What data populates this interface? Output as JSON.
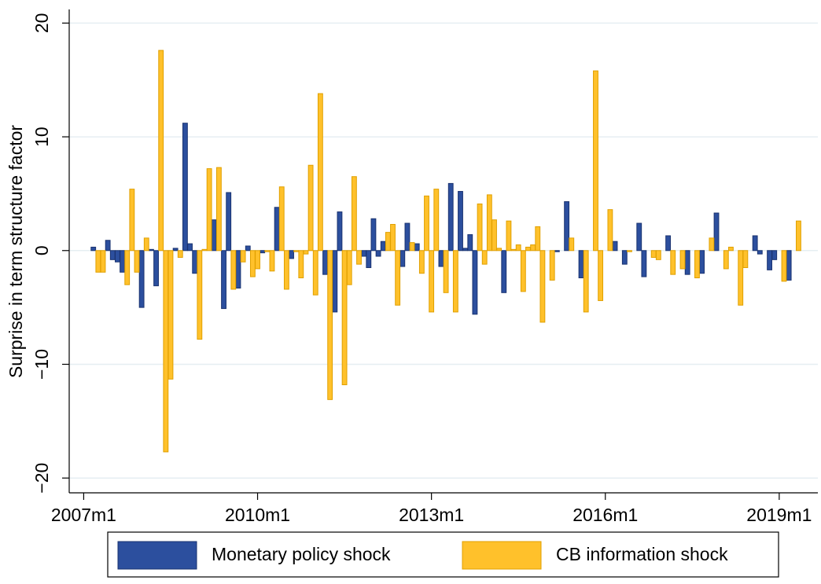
{
  "chart_data": {
    "type": "bar",
    "y_label": "Surprise in term structure factor",
    "x": [
      "2007m3",
      "2007m4",
      "2007m5",
      "2007m6",
      "2007m7",
      "2007m8",
      "2007m9",
      "2007m10",
      "2007m11",
      "2007m12",
      "2008m1",
      "2008m2",
      "2008m3",
      "2008m4",
      "2008m5",
      "2008m6",
      "2008m7",
      "2008m8",
      "2008m9",
      "2008m10",
      "2008m11",
      "2008m12",
      "2009m1",
      "2009m2",
      "2009m3",
      "2009m4",
      "2009m5",
      "2009m6",
      "2009m7",
      "2009m8",
      "2009m9",
      "2009m10",
      "2009m11",
      "2009m12",
      "2010m1",
      "2010m2",
      "2010m3",
      "2010m4",
      "2010m5",
      "2010m6",
      "2010m7",
      "2010m8",
      "2010m9",
      "2010m10",
      "2010m11",
      "2010m12",
      "2011m1",
      "2011m2",
      "2011m3",
      "2011m4",
      "2011m5",
      "2011m6",
      "2011m7",
      "2011m8",
      "2011m9",
      "2011m10",
      "2011m11",
      "2011m12",
      "2012m1",
      "2012m2",
      "2012m3",
      "2012m4",
      "2012m5",
      "2012m6",
      "2012m7",
      "2012m8",
      "2012m9",
      "2012m10",
      "2012m11",
      "2012m12",
      "2013m1",
      "2013m2",
      "2013m3",
      "2013m4",
      "2013m5",
      "2013m6",
      "2013m7",
      "2013m8",
      "2013m9",
      "2013m10",
      "2013m11",
      "2013m12",
      "2014m1",
      "2014m2",
      "2014m3",
      "2014m4",
      "2014m5",
      "2014m6",
      "2014m7",
      "2014m8",
      "2014m9",
      "2014m10",
      "2014m11",
      "2014m12",
      "2015m2",
      "2015m3",
      "2015m5",
      "2015m6",
      "2015m8",
      "2015m9",
      "2015m11",
      "2015m12",
      "2016m2",
      "2016m3",
      "2016m5",
      "2016m6",
      "2016m8",
      "2016m9",
      "2016m11",
      "2016m12",
      "2017m2",
      "2017m3",
      "2017m5",
      "2017m6",
      "2017m8",
      "2017m9",
      "2017m11",
      "2017m12",
      "2018m2",
      "2018m3",
      "2018m5",
      "2018m6",
      "2018m8",
      "2018m9",
      "2018m11",
      "2018m12",
      "2019m2",
      "2019m3",
      "2019m5"
    ],
    "series": [
      {
        "name": "Monetary policy shock",
        "color": "#2c4f9e",
        "edge": "#1a3370",
        "values": [
          0.3,
          null,
          null,
          0.9,
          -0.8,
          -1.0,
          -1.9,
          null,
          null,
          null,
          -5.0,
          null,
          0.1,
          -3.1,
          null,
          null,
          null,
          0.2,
          null,
          11.2,
          0.6,
          -2.0,
          null,
          null,
          null,
          2.7,
          null,
          -5.1,
          5.1,
          null,
          -3.3,
          null,
          0.4,
          null,
          null,
          -0.2,
          null,
          null,
          3.8,
          null,
          null,
          -0.7,
          null,
          null,
          null,
          null,
          null,
          null,
          -2.1,
          null,
          -5.4,
          3.4,
          null,
          null,
          null,
          null,
          -0.5,
          -1.5,
          2.8,
          -0.5,
          0.8,
          null,
          null,
          null,
          -1.4,
          2.4,
          null,
          0.6,
          null,
          null,
          null,
          null,
          -1.4,
          null,
          5.9,
          null,
          5.2,
          0.2,
          1.4,
          -5.6,
          null,
          null,
          null,
          null,
          null,
          -3.7,
          null,
          null,
          null,
          null,
          null,
          null,
          null,
          null,
          null,
          -0.1,
          4.3,
          null,
          -2.4,
          null,
          null,
          null,
          null,
          0.8,
          -1.2,
          null,
          2.4,
          -2.3,
          null,
          null,
          1.3,
          null,
          null,
          -2.1,
          null,
          -2.0,
          null,
          3.3,
          null,
          null,
          null,
          null,
          1.3,
          -0.3,
          -1.7,
          -0.8,
          null,
          -2.6,
          null
        ]
      },
      {
        "name": "CB information shock",
        "color": "#ffc12b",
        "edge": "#e0a000",
        "values": [
          null,
          -1.9,
          -1.9,
          null,
          null,
          null,
          null,
          -3.0,
          5.4,
          -1.9,
          null,
          1.1,
          null,
          null,
          17.6,
          -17.7,
          -11.3,
          null,
          -0.6,
          null,
          null,
          null,
          -7.8,
          0.1,
          7.2,
          null,
          7.3,
          null,
          null,
          -3.4,
          null,
          -1.0,
          null,
          -2.3,
          -1.6,
          null,
          -0.1,
          -1.8,
          null,
          5.6,
          -3.4,
          null,
          -0.1,
          -2.4,
          -0.3,
          7.5,
          -3.9,
          13.8,
          null,
          -13.1,
          null,
          null,
          -11.8,
          -3.0,
          6.5,
          -1.2,
          null,
          null,
          null,
          null,
          null,
          1.6,
          2.3,
          -4.8,
          null,
          null,
          0.7,
          null,
          -2.0,
          4.8,
          -5.4,
          5.4,
          null,
          -3.7,
          null,
          -5.4,
          null,
          null,
          null,
          null,
          4.1,
          -1.2,
          4.9,
          2.7,
          0.2,
          null,
          2.6,
          0.1,
          0.5,
          -3.6,
          0.3,
          0.5,
          2.1,
          -6.3,
          -2.6,
          null,
          null,
          1.1,
          null,
          -5.4,
          15.8,
          -4.4,
          3.6,
          null,
          null,
          -0.1,
          null,
          null,
          -0.6,
          -0.8,
          null,
          -2.1,
          -1.6,
          null,
          -2.4,
          null,
          1.1,
          null,
          -1.6,
          0.3,
          -4.8,
          -1.5,
          null,
          null,
          null,
          null,
          -2.7,
          null,
          2.6
        ]
      }
    ],
    "xlim": [
      "2006m10",
      "2019m9"
    ],
    "xticks": [
      "2007m1",
      "2010m1",
      "2013m1",
      "2016m1",
      "2019m1"
    ],
    "ylim": [
      -21.3,
      21.2
    ],
    "yticks": [
      {
        "value": -20,
        "label": "−20"
      },
      {
        "value": -10,
        "label": "−10"
      },
      0,
      10,
      20
    ],
    "grid": true,
    "legend": "bottom"
  }
}
